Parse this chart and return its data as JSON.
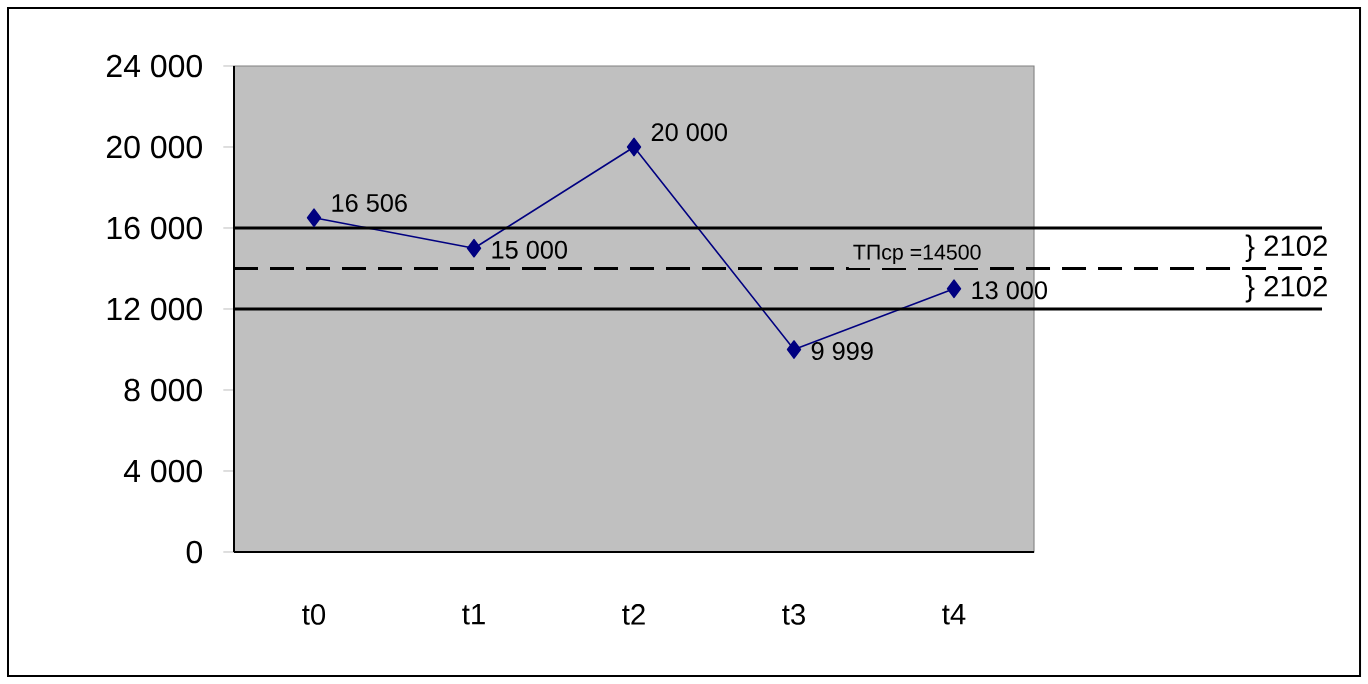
{
  "chart_data": {
    "type": "line",
    "categories": [
      "t0",
      "t1",
      "t2",
      "t3",
      "t4"
    ],
    "series": [
      {
        "color": "#000080",
        "values": [
          16506,
          15000,
          20000,
          9999,
          13000
        ],
        "value_labels": [
          "16 506",
          "15 000",
          "20 000",
          "9 999",
          "13 000"
        ]
      }
    ],
    "marker": "diamond",
    "line_style": "solid",
    "grid": false,
    "ylim": [
      0,
      24000
    ],
    "yticks": [
      {
        "value": 0,
        "label": "0"
      },
      {
        "value": 4000,
        "label": "4 000"
      },
      {
        "value": 8000,
        "label": "8 000"
      },
      {
        "value": 12000,
        "label": "12 000"
      },
      {
        "value": 16000,
        "label": "16 000"
      },
      {
        "value": 20000,
        "label": "20 000"
      },
      {
        "value": 24000,
        "label": "24 000"
      }
    ],
    "ref_lines": [
      {
        "axis": "y",
        "value": 16000,
        "color": "#000000",
        "line_style": "solid"
      },
      {
        "axis": "y",
        "value": 14000,
        "color": "#000000",
        "line_style": "dashed"
      },
      {
        "axis": "y",
        "value": 12000,
        "color": "#000000",
        "line_style": "solid"
      }
    ],
    "annotations": [
      {
        "text": "ТПср =14500",
        "y": 14000
      },
      "} 2102",
      "} 2102"
    ]
  }
}
